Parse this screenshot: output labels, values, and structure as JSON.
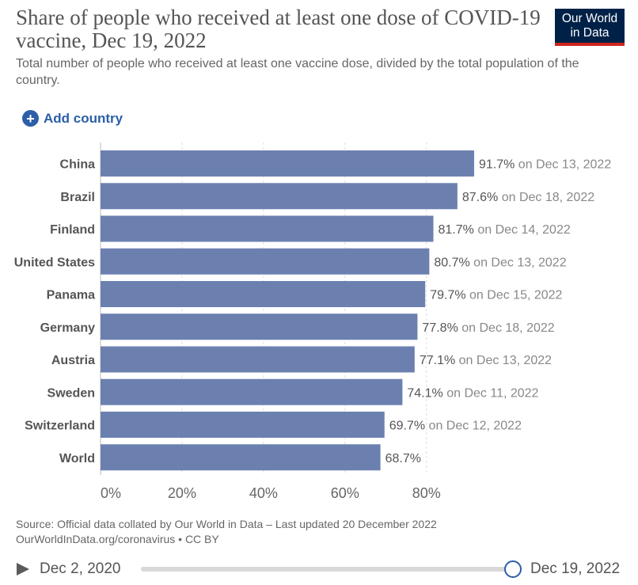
{
  "header": {
    "title": "Share of people who received at least one dose of COVID-19 vaccine, Dec 19, 2022",
    "subtitle": "Total number of people who received at least one vaccine dose, divided by the total population of the country.",
    "logo_line1": "Our World",
    "logo_line2": "in Data"
  },
  "controls": {
    "add_country_label": "Add country"
  },
  "footer": {
    "source_line1": "Source: Official data collated by Our World in Data – Last updated 20 December 2022",
    "source_line2": "OurWorldInData.org/coronavirus • CC BY"
  },
  "timeline": {
    "start_date": "Dec 2, 2020",
    "end_date": "Dec 19, 2022",
    "position": 1.0
  },
  "colors": {
    "bar": "#6c80b0",
    "accent": "#2c5fa8",
    "logo_bg": "#002147",
    "logo_bar": "#ce261e"
  },
  "chart_data": {
    "type": "bar",
    "orientation": "horizontal",
    "categories": [
      "China",
      "Brazil",
      "Finland",
      "United States",
      "Panama",
      "Germany",
      "Austria",
      "Sweden",
      "Switzerland",
      "World"
    ],
    "values": [
      91.7,
      87.6,
      81.7,
      80.7,
      79.7,
      77.8,
      77.1,
      74.1,
      69.7,
      68.7
    ],
    "value_labels": [
      "91.7%",
      "87.6%",
      "81.7%",
      "80.7%",
      "79.7%",
      "77.8%",
      "77.1%",
      "74.1%",
      "69.7%",
      "68.7%"
    ],
    "date_labels": [
      "on Dec 13, 2022",
      "on Dec 18, 2022",
      "on Dec 14, 2022",
      "on Dec 13, 2022",
      "on Dec 15, 2022",
      "on Dec 18, 2022",
      "on Dec 13, 2022",
      "on Dec 11, 2022",
      "on Dec 12, 2022",
      ""
    ],
    "x_ticks": [
      0,
      20,
      40,
      60,
      80
    ],
    "x_tick_labels": [
      "0%",
      "20%",
      "40%",
      "60%",
      "80%"
    ],
    "xlim": [
      0,
      100
    ],
    "grid": "vertical dashed",
    "xlabel": "",
    "ylabel": ""
  }
}
